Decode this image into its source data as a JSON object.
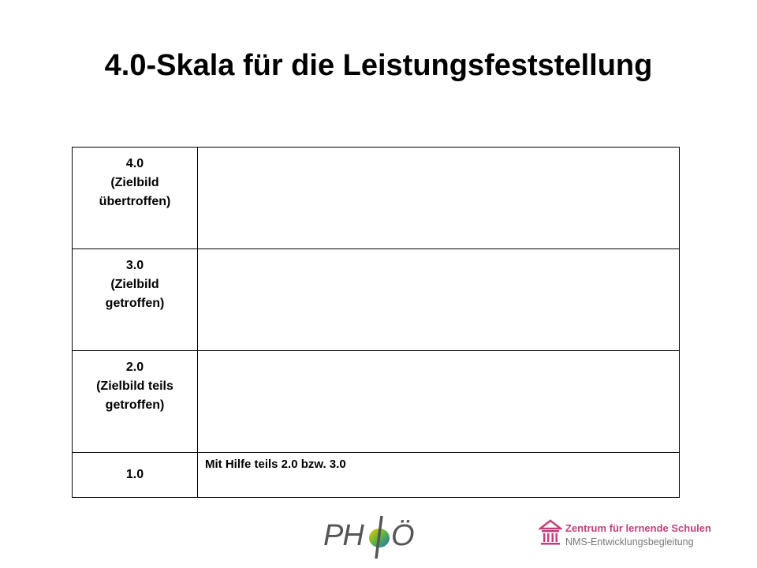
{
  "slide": {
    "title": "4.0-Skala für die Leistungsfeststellung"
  },
  "scale_table": {
    "rows": [
      {
        "level": "4.0",
        "label_line1": "(Zielbild",
        "label_line2": "übertroffen)",
        "description": ""
      },
      {
        "level": "3.0",
        "label_line1": "(Zielbild",
        "label_line2": "getroffen)",
        "description": ""
      },
      {
        "level": "2.0",
        "label_line1": "(Zielbild teils",
        "label_line2": "getroffen)",
        "description": ""
      },
      {
        "level": "1.0",
        "label_line1": "",
        "label_line2": "",
        "description": "Mit Hilfe teils 2.0 bzw. 3.0"
      }
    ]
  },
  "footer": {
    "phoe_logo": {
      "left_text": "PH",
      "right_text": "Ö",
      "icon": "phi-icon"
    },
    "zentrum_logo": {
      "name": "Zentrum für lernende Schulen",
      "subtitle": "NMS-Entwicklungsbegleitung",
      "icon": "building-icon",
      "color": "#c0407e"
    }
  }
}
